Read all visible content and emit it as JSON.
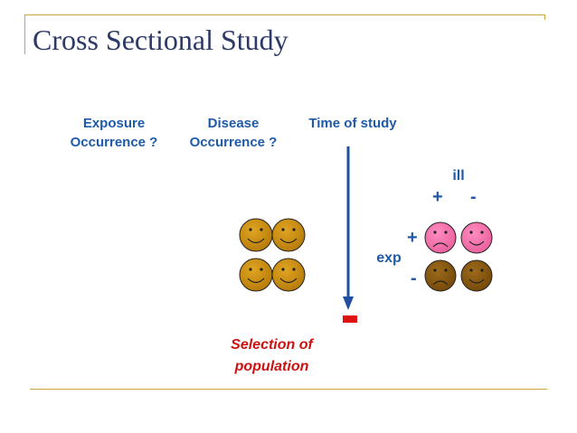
{
  "title": "Cross Sectional Study",
  "columns": {
    "exposure": [
      "Exposure",
      "Occurrence ?"
    ],
    "disease": [
      "Disease",
      "Occurrence ?"
    ],
    "time": "Time of study"
  },
  "table": {
    "ill_label": "ill",
    "ill_plus": "+",
    "ill_minus": "-",
    "exp_label": "exp",
    "exp_plus": "+",
    "exp_minus": "-"
  },
  "selection": [
    "Selection of",
    "population"
  ],
  "colors": {
    "title": "#2e3a66",
    "label_blue": "#1f5aa8",
    "selection_red": "#cc1111",
    "rule_gold": "#c9a640",
    "face_gold": "#c78b12",
    "face_pink": "#f06fa8",
    "face_brown": "#8a5a14"
  }
}
